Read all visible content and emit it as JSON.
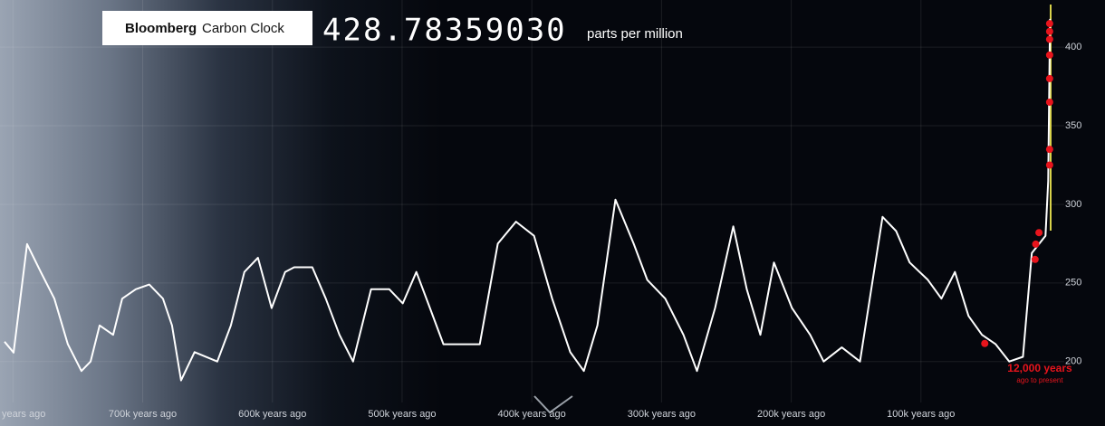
{
  "header": {
    "brand": "Bloomberg",
    "product": "Carbon Clock",
    "reading": "428.78359030",
    "unit": "parts per million"
  },
  "chart_data": {
    "type": "line",
    "color": "#ffffff",
    "x": [
      806500,
      799500,
      789100,
      778600,
      768100,
      757700,
      747200,
      740200,
      733200,
      722800,
      715800,
      705300,
      694900,
      684400,
      677400,
      670400,
      660000,
      642500,
      632000,
      621600,
      611100,
      600600,
      590200,
      583200,
      569200,
      558800,
      548300,
      537800,
      523900,
      509900,
      499500,
      489000,
      478500,
      468100,
      454100,
      440100,
      426200,
      412200,
      398300,
      384300,
      370400,
      359900,
      349400,
      335500,
      321500,
      311000,
      297100,
      283100,
      272700,
      258700,
      244700,
      234300,
      223800,
      213300,
      199400,
      185400,
      175000,
      161000,
      147000,
      129600,
      119100,
      108700,
      94700,
      84200,
      73800,
      63300,
      52900,
      42400,
      31900,
      21400,
      14500,
      4000,
      1900,
      500
    ],
    "values": [
      212.6,
      205.7,
      274.7,
      257,
      240,
      211,
      194,
      200,
      223,
      217,
      240,
      246,
      249,
      240,
      223,
      188,
      206,
      200,
      223,
      257,
      266,
      234,
      257,
      260,
      260,
      240,
      217,
      200,
      246,
      246,
      237,
      257,
      234,
      211,
      211,
      211,
      275,
      289,
      280,
      240,
      206,
      194,
      223,
      303,
      275,
      252,
      240,
      217,
      194,
      234,
      286,
      246,
      217,
      263,
      234,
      217,
      200,
      209,
      200,
      292,
      283,
      263,
      252,
      240,
      257,
      229,
      217,
      211,
      200,
      203,
      269,
      280,
      315,
      418
    ],
    "markers": {
      "color": "#e8141c",
      "x": [
        50800,
        12000,
        11500,
        9000,
        800,
        800,
        800,
        800,
        800,
        800,
        800,
        800
      ],
      "values": [
        211.5,
        265,
        274.7,
        282,
        325,
        335,
        365,
        380,
        395,
        405,
        410,
        415
      ]
    },
    "xlim": [
      810000,
      0
    ],
    "xticks": [
      {
        "value": 800000,
        "label": "years ago"
      },
      {
        "value": 700000,
        "label": "700k years ago"
      },
      {
        "value": 600000,
        "label": "600k years ago"
      },
      {
        "value": 500000,
        "label": "500k years ago"
      },
      {
        "value": 400000,
        "label": "400k years ago"
      },
      {
        "value": 300000,
        "label": "300k years ago"
      },
      {
        "value": 200000,
        "label": "200k years ago"
      },
      {
        "value": 100000,
        "label": "100k years ago"
      }
    ],
    "ylim": [
      159,
      430
    ],
    "yticks": [
      200,
      250,
      300,
      350,
      400
    ],
    "grid": true,
    "annotations": [
      "12,000 years",
      "ago to present"
    ]
  }
}
